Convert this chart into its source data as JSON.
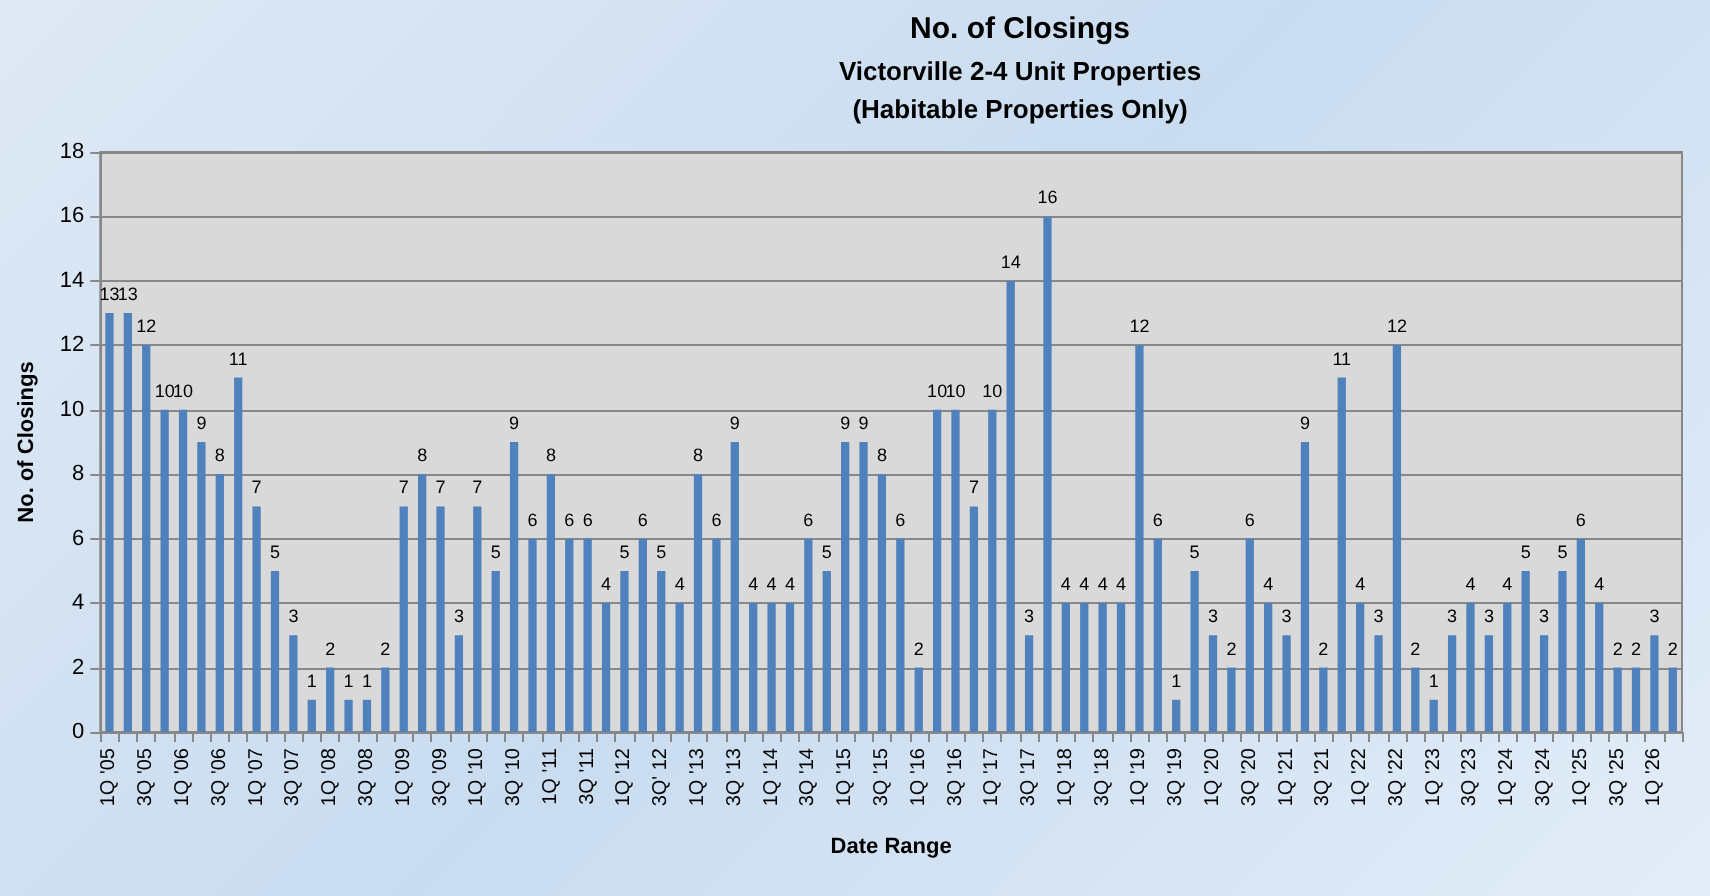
{
  "chart_data": {
    "type": "bar",
    "title": "No. of Closings",
    "subtitle": "Victorville 2-4 Unit Properties\n(Habitable Properties Only)",
    "xlabel": "Date Range",
    "ylabel": "No. of Closings",
    "categories": [
      "1Q '05",
      null,
      "3Q '05",
      null,
      "1Q '06",
      null,
      "3Q '06",
      null,
      "1Q '07",
      null,
      "3Q '07",
      null,
      "1Q '08",
      null,
      "3Q '08",
      null,
      "1Q '09",
      null,
      "3Q '09",
      null,
      "1Q '10",
      null,
      "3Q '10",
      null,
      "1Q '11",
      null,
      "3Q '11",
      null,
      "1Q '12",
      null,
      "3Q' 12",
      null,
      "1Q '13",
      null,
      "3Q '13",
      null,
      "1Q '14",
      null,
      "3Q '14",
      null,
      "1Q '15",
      null,
      "3Q '15",
      null,
      "1Q '16",
      null,
      "3Q '16",
      null,
      "1Q '17",
      null,
      "3Q '17",
      null,
      "1Q '18",
      null,
      "3Q '18",
      null,
      "1Q '19",
      null,
      "3Q '19",
      null,
      "1Q '20",
      null,
      "3Q '20",
      null,
      "1Q '21",
      null,
      "3Q '21",
      null,
      "1Q '22",
      null,
      "3Q '22",
      null,
      "1Q '23",
      null,
      "3Q '23",
      null,
      "1Q '24",
      null,
      "3Q '24",
      null,
      "1Q '25",
      null,
      "3Q '25",
      null,
      "1Q '26",
      null
    ],
    "values": [
      13,
      13,
      12,
      10,
      10,
      9,
      8,
      11,
      7,
      5,
      3,
      1,
      2,
      1,
      1,
      2,
      7,
      8,
      7,
      3,
      7,
      5,
      9,
      6,
      8,
      6,
      6,
      4,
      5,
      6,
      5,
      4,
      8,
      6,
      9,
      4,
      4,
      4,
      6,
      5,
      9,
      9,
      8,
      6,
      2,
      10,
      10,
      7,
      10,
      14,
      3,
      16,
      4,
      4,
      4,
      4,
      12,
      6,
      1,
      5,
      3,
      2,
      6,
      4,
      3,
      9,
      2,
      11,
      4,
      3,
      12,
      2,
      1,
      3,
      4,
      3,
      4,
      5,
      3,
      5,
      6,
      4,
      2,
      2,
      3,
      2
    ],
    "color": "#4f81bd",
    "ylim": [
      0,
      18
    ],
    "yticks": [
      0,
      2,
      4,
      6,
      8,
      10,
      12,
      14,
      16,
      18
    ],
    "grid": "y",
    "data_labels": true
  }
}
